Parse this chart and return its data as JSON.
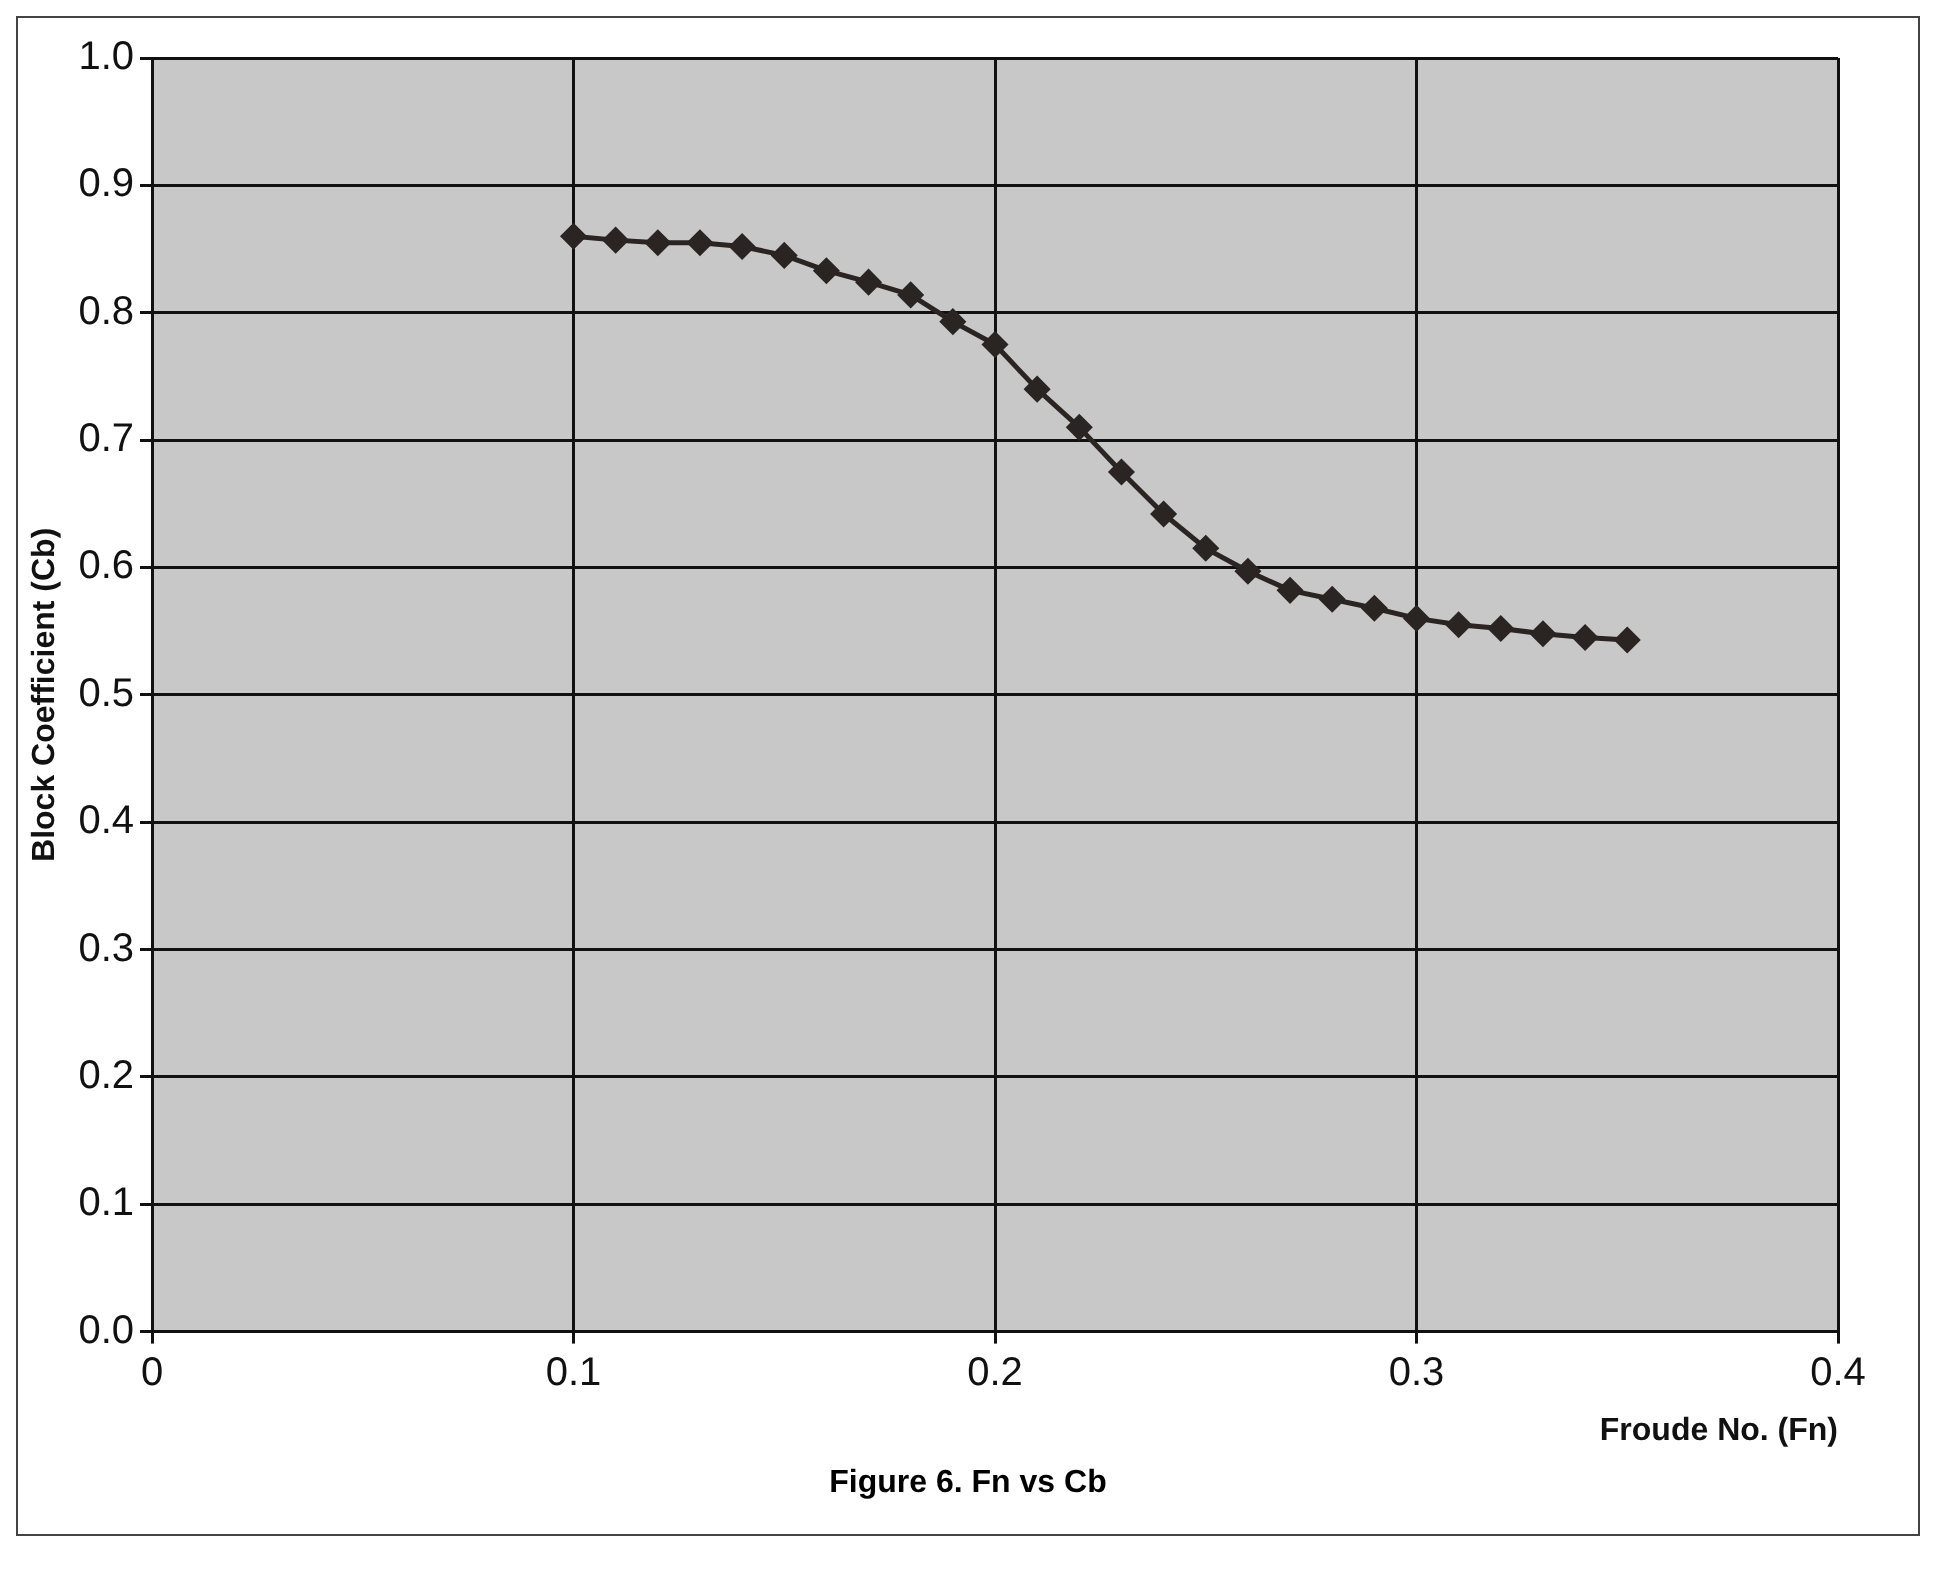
{
  "chart_data": {
    "type": "line",
    "xlabel": "Froude No. (Fn)",
    "ylabel": "Block Coefficient (Cb)",
    "annotations": [
      "Figure 6.  Fn vs Cb"
    ],
    "x": [
      0.1,
      0.11,
      0.12,
      0.13,
      0.14,
      0.15,
      0.16,
      0.17,
      0.18,
      0.19,
      0.2,
      0.21,
      0.22,
      0.23,
      0.24,
      0.25,
      0.26,
      0.27,
      0.28,
      0.29,
      0.3,
      0.31,
      0.32,
      0.33,
      0.34,
      0.35
    ],
    "series": [
      {
        "color": "#2a2522",
        "values": [
          0.86,
          0.857,
          0.855,
          0.855,
          0.852,
          0.845,
          0.833,
          0.824,
          0.814,
          0.793,
          0.775,
          0.74,
          0.71,
          0.675,
          0.642,
          0.615,
          0.597,
          0.582,
          0.575,
          0.568,
          0.56,
          0.555,
          0.552,
          0.548,
          0.545,
          0.543
        ]
      }
    ],
    "xlim": [
      0,
      0.4
    ],
    "xticks": [
      0,
      0.1,
      0.2,
      0.3,
      0.4
    ],
    "ylim": [
      0,
      1
    ],
    "yticks": [
      {
        "value": 0,
        "label": "0.0"
      },
      0.1,
      0.2,
      0.3,
      0.4,
      0.5,
      0.6,
      0.7,
      0.8,
      0.9,
      {
        "value": 1,
        "label": "1.0"
      }
    ],
    "grid": true,
    "legend": false,
    "marker": "diamond",
    "line_style": "solid"
  }
}
